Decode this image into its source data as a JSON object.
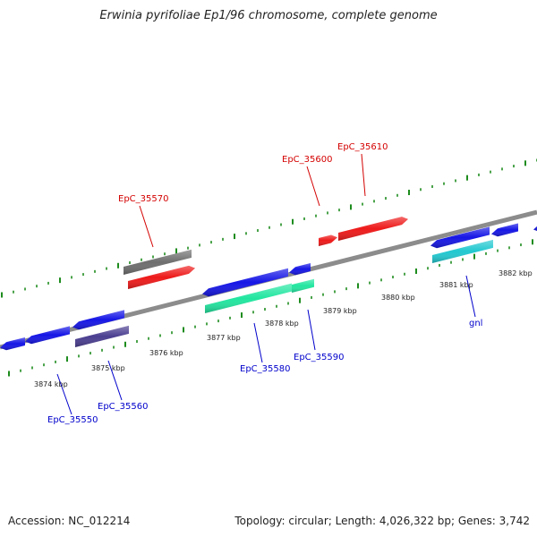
{
  "title": "Erwinia pyrifoliae Ep1/96 chromosome, complete genome",
  "footer": {
    "accession": "Accession: NC_012214",
    "summary": "Topology: circular; Length: 4,026,322 bp; Genes: 3,742"
  },
  "colors": {
    "backbone": "#8c8c8c",
    "tick": "#1e8c1e",
    "blue": "#1616e6",
    "red": "#ee1a1a",
    "gray": "#6e6e6e",
    "green": "#22e6a0",
    "cyan": "#22c8d0",
    "navy": "#4a3e90",
    "label_red": "#d40000",
    "label_blue": "#0000cc"
  },
  "scale_labels": [
    "3874 kbp",
    "3875 kbp",
    "3876 kbp",
    "3877 kbp",
    "3878 kbp",
    "3879 kbp",
    "3880 kbp",
    "3881 kbp",
    "3882 kbp"
  ],
  "gene_labels": [
    {
      "text": "EpC_35570",
      "strand": "top"
    },
    {
      "text": "EpC_35600",
      "strand": "top"
    },
    {
      "text": "EpC_35610",
      "strand": "top"
    },
    {
      "text": "EpC_35550",
      "strand": "bottom"
    },
    {
      "text": "EpC_35560",
      "strand": "bottom"
    },
    {
      "text": "EpC_35580",
      "strand": "bottom"
    },
    {
      "text": "EpC_35590",
      "strand": "bottom"
    },
    {
      "text": "gnl",
      "strand": "bottom"
    }
  ]
}
